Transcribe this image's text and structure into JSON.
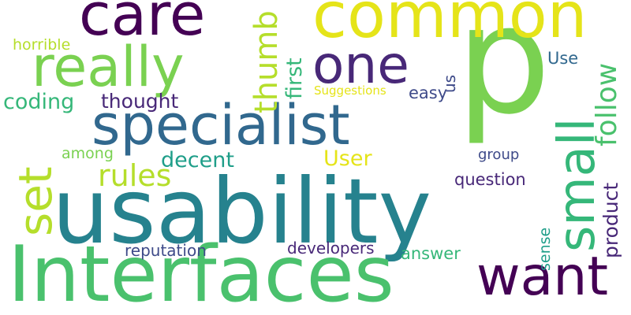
{
  "words": {
    "p": "p",
    "usability": "usability",
    "interfaces": "Interfaces",
    "common": "common",
    "specialist": "specialist",
    "care": "care",
    "really": "really",
    "one": "one",
    "small": "small",
    "set": "set",
    "want": "want",
    "thumb": "thumb",
    "rules": "rules",
    "follow": "follow",
    "coding": "coding",
    "thought": "thought",
    "decent": "decent",
    "first": "first",
    "user": "User",
    "product": "product",
    "question": "question",
    "easy": "easy",
    "use": "Use",
    "group": "group",
    "sense": "sense",
    "answer": "answer",
    "developers": "developers",
    "reputation": "reputation",
    "among": "among",
    "horrible": "horrible",
    "suggestions": "Suggestions",
    "us": "us"
  },
  "colors": {
    "dark_purple": "#440154",
    "purple": "#482878",
    "indigo": "#3e4a89",
    "blue": "#31688e",
    "teal": "#26828e",
    "green_teal": "#1f9e89",
    "green": "#35b779",
    "mid_green": "#4ac16d",
    "light_green": "#6ece58",
    "lime": "#b5de2b",
    "yellow": "#e5e419"
  }
}
